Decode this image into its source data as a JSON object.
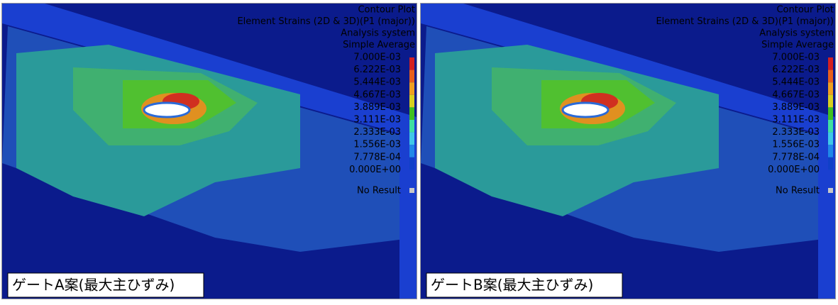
{
  "panels": [
    {
      "header": [
        "Contour Plot",
        "Element Strains (2D & 3D)(P1 (major))",
        "Analysis system",
        "Simple Average"
      ],
      "legend": {
        "labels": [
          "7.000E-03",
          "6.222E-03",
          "5.444E-03",
          "4.667E-03",
          "3.889E-03",
          "3.111E-03",
          "2.333E-03",
          "1.556E-03",
          "7.778E-04",
          "0.000E+00"
        ],
        "colors": [
          "#d42020",
          "#e8601c",
          "#f0a020",
          "#d8d020",
          "#40c020",
          "#40e0a0",
          "#40c8e8",
          "#2088e8",
          "#1040c8"
        ],
        "no_result": "No Result",
        "no_result_color": "#c8c8c8"
      },
      "caption": "ゲートA案(最大主ひずみ)"
    },
    {
      "header": [
        "Contour Plot",
        "Element Strains (2D & 3D)(P1 (major))",
        "Analysis system",
        "Simple Average"
      ],
      "legend": {
        "labels": [
          "7.000E-03",
          "6.222E-03",
          "5.444E-03",
          "4.667E-03",
          "3.889E-03",
          "3.111E-03",
          "2.333E-03",
          "1.556E-03",
          "7.778E-04",
          "0.000E+00"
        ],
        "colors": [
          "#d42020",
          "#e8601c",
          "#f0a020",
          "#d8d020",
          "#40c020",
          "#40e0a0",
          "#40c8e8",
          "#2088e8",
          "#1040c8"
        ],
        "no_result": "No Result",
        "no_result_color": "#c8c8c8"
      },
      "caption": "ゲートB案(最大主ひずみ)"
    }
  ]
}
